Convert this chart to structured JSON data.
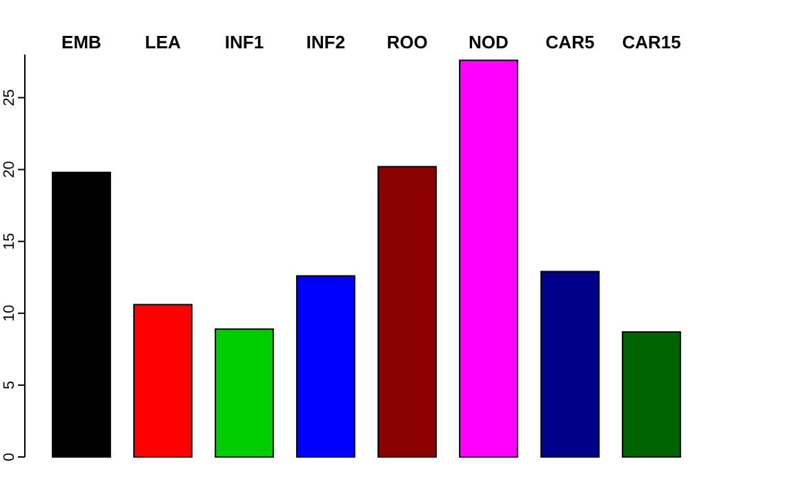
{
  "chart_data": {
    "type": "bar",
    "categories": [
      "EMB",
      "LEA",
      "INF1",
      "INF2",
      "ROO",
      "NOD",
      "CAR5",
      "CAR15"
    ],
    "values": [
      19.8,
      10.6,
      8.9,
      12.6,
      20.2,
      27.6,
      12.9,
      8.7
    ],
    "colors": [
      "#000000",
      "#ff0000",
      "#00cd00",
      "#0000ff",
      "#8b0000",
      "#ff00ff",
      "#00008b",
      "#006400"
    ],
    "ylim": [
      0,
      28
    ],
    "yticks": [
      0,
      5,
      10,
      15,
      20,
      25
    ],
    "grid": false
  }
}
